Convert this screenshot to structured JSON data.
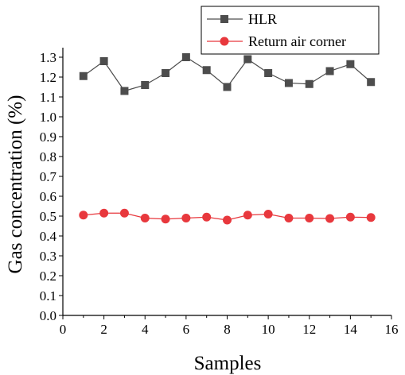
{
  "chart_data": {
    "type": "line",
    "title": "",
    "xlabel": "Samples",
    "ylabel": "Gas concentration (%)",
    "xlim": [
      0,
      16
    ],
    "ylim": [
      0.0,
      1.3
    ],
    "x_ticks": [
      "0",
      "2",
      "4",
      "6",
      "8",
      "10",
      "12",
      "14",
      "16"
    ],
    "y_ticks": [
      "0.0",
      "0.1",
      "0.2",
      "0.3",
      "0.4",
      "0.5",
      "0.6",
      "0.7",
      "0.8",
      "0.9",
      "1.0",
      "1.1",
      "1.2",
      "1.3"
    ],
    "grid": false,
    "legend_position": "top-right",
    "x": [
      1,
      2,
      3,
      4,
      5,
      6,
      7,
      8,
      9,
      10,
      11,
      12,
      13,
      14,
      15
    ],
    "series": [
      {
        "name": "HLR",
        "color": "#4d4d4d",
        "marker": "square",
        "values": [
          1.205,
          1.28,
          1.13,
          1.16,
          1.22,
          1.3,
          1.235,
          1.15,
          1.29,
          1.22,
          1.17,
          1.165,
          1.23,
          1.265,
          1.175
        ]
      },
      {
        "name": "Return air corner",
        "color": "#e8383d",
        "marker": "circle",
        "values": [
          0.505,
          0.515,
          0.515,
          0.49,
          0.485,
          0.49,
          0.495,
          0.48,
          0.505,
          0.51,
          0.49,
          0.49,
          0.488,
          0.495,
          0.493
        ]
      }
    ]
  }
}
